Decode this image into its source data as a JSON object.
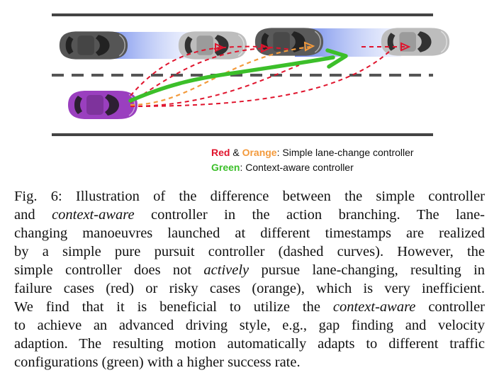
{
  "legend": {
    "red_word": "Red",
    "amp": "&",
    "orange_word": "Orange",
    "simple_rest": ": Simple lane-change controller",
    "green_word": "Green",
    "context_rest": ": Context-aware controller"
  },
  "caption": {
    "label": "Fig. 6:",
    "l1": "Illustration of the difference between the simple controller",
    "l2a": "and",
    "l2b": "context-aware",
    "l2c": "controller in the action branching. The lane-",
    "l3": "changing manoeuvres launched at different timestamps are realized",
    "l4": "by a simple pure pursuit controller (dashed curves). However, the",
    "l5a": "simple controller does not",
    "l5b": "actively",
    "l5c": "pursue lane-changing, resulting in",
    "l6": "failure cases (red) or risky cases (orange), which is very inefficient.",
    "l7a": "We find that it is beneficial to utilize the",
    "l7b": "context-aware",
    "l7c": "controller",
    "l8": "to achieve an advanced driving style, e.g., gap finding and velocity",
    "l9": "adaption. The resulting motion automatically adapts to different traffic",
    "l10": "configurations (green) with a higher success rate."
  },
  "colors": {
    "red": "#e0142d",
    "orange": "#f39a3c",
    "green": "#3cbf2a",
    "ego_car": "#9a3fbf",
    "other_car": "#555555",
    "ghost_car": "#bdbdbd",
    "motion_blur": "#5a78e6"
  }
}
